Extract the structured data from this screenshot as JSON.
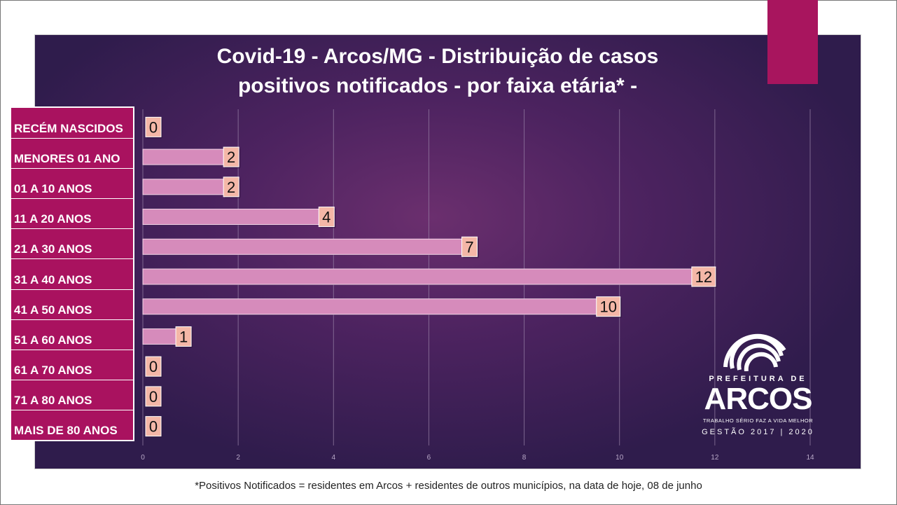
{
  "title_line1": "Covid-19 - Arcos/MG - Distribuição de casos",
  "title_line2": "positivos notificados - por faixa etária* -",
  "footnote": "*Positivos Notificados = residentes em Arcos + residentes de outros municípios, na data de hoje, 08 de junho",
  "logo": {
    "prefix": "PREFEITURA DE",
    "name": "ARCOS",
    "slogan": "TRABALHO SÉRIO FAZ A VIDA MELHOR",
    "gestao": "GESTÃO 2017 | 2020"
  },
  "colors": {
    "accent": "#a8155e",
    "bar": "#d68bbb",
    "label_box": "#f4b7a7",
    "grid": "#9a85a8",
    "tick_text": "#b9a9c8"
  },
  "chart_data": {
    "type": "bar",
    "orientation": "horizontal",
    "title": "Covid-19 - Arcos/MG - Distribuição de casos positivos notificados - por faixa etária* -",
    "categories": [
      "RECÉM NASCIDOS",
      "MENORES 01 ANO",
      "01 A 10 ANOS",
      "11 A 20 ANOS",
      "21 A 30 ANOS",
      "31 A 40 ANOS",
      "41 A 50 ANOS",
      "51 A 60 ANOS",
      "61 A 70 ANOS",
      "71 A 80 ANOS",
      "MAIS DE 80 ANOS"
    ],
    "values": [
      0,
      2,
      2,
      4,
      7,
      12,
      10,
      1,
      0,
      0,
      0
    ],
    "xlim": [
      0,
      14
    ],
    "xticks": [
      "0",
      "2",
      "4",
      "6",
      "8",
      "10",
      "12",
      "14"
    ],
    "grid": true,
    "data_labels": true
  }
}
